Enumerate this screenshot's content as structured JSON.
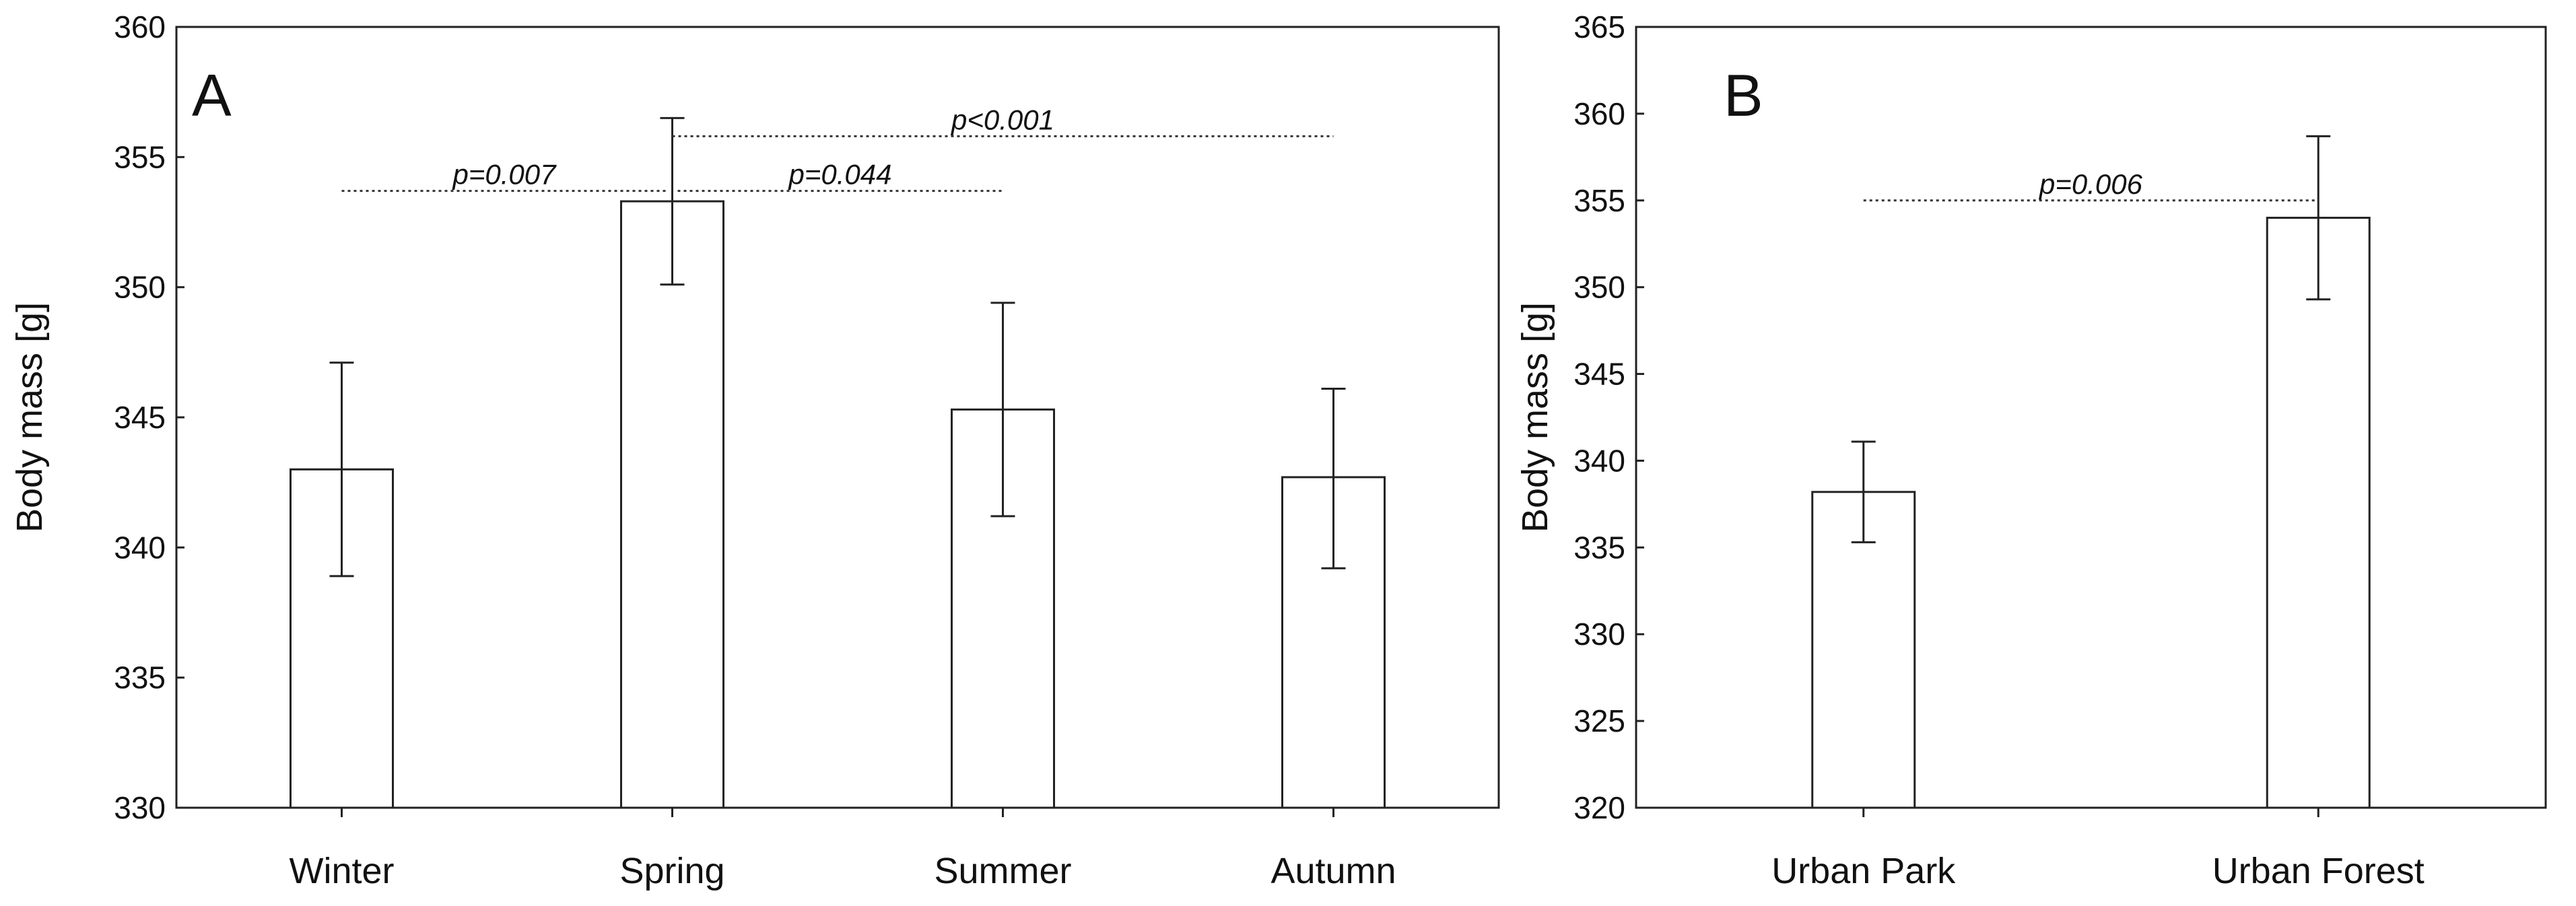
{
  "chart_data": [
    {
      "type": "bar",
      "panel_label": "A",
      "ylabel": "Body mass [g]",
      "ylim": [
        330,
        360
      ],
      "yticks": [
        330,
        335,
        340,
        345,
        350,
        355,
        360
      ],
      "categories": [
        "Winter",
        "Spring",
        "Summer",
        "Autumn"
      ],
      "values": [
        343.0,
        353.3,
        345.3,
        342.7
      ],
      "error_low": [
        338.9,
        350.1,
        341.2,
        339.2
      ],
      "error_high": [
        347.1,
        356.5,
        349.4,
        346.1
      ],
      "grid": false,
      "legend": "none",
      "annotations": [
        {
          "text": "p=0.007",
          "from": "Winter",
          "to": "Spring",
          "y": 353.7
        },
        {
          "text": "p=0.044",
          "from": "Spring",
          "to": "Summer",
          "y": 353.7
        },
        {
          "text": "p<0.001",
          "from": "Spring",
          "to": "Autumn",
          "y": 355.8
        }
      ]
    },
    {
      "type": "bar",
      "panel_label": "B",
      "ylabel": "Body mass [g]",
      "ylim": [
        320,
        365
      ],
      "yticks": [
        320,
        325,
        330,
        335,
        340,
        345,
        350,
        355,
        360,
        365
      ],
      "categories": [
        "Urban Park",
        "Urban Forest"
      ],
      "values": [
        338.2,
        354.0
      ],
      "error_low": [
        335.3,
        349.3
      ],
      "error_high": [
        341.1,
        358.7
      ],
      "grid": false,
      "legend": "none",
      "annotations": [
        {
          "text": "p=0.006",
          "from": "Urban Park",
          "to": "Urban Forest",
          "y": 355.0
        }
      ]
    }
  ]
}
